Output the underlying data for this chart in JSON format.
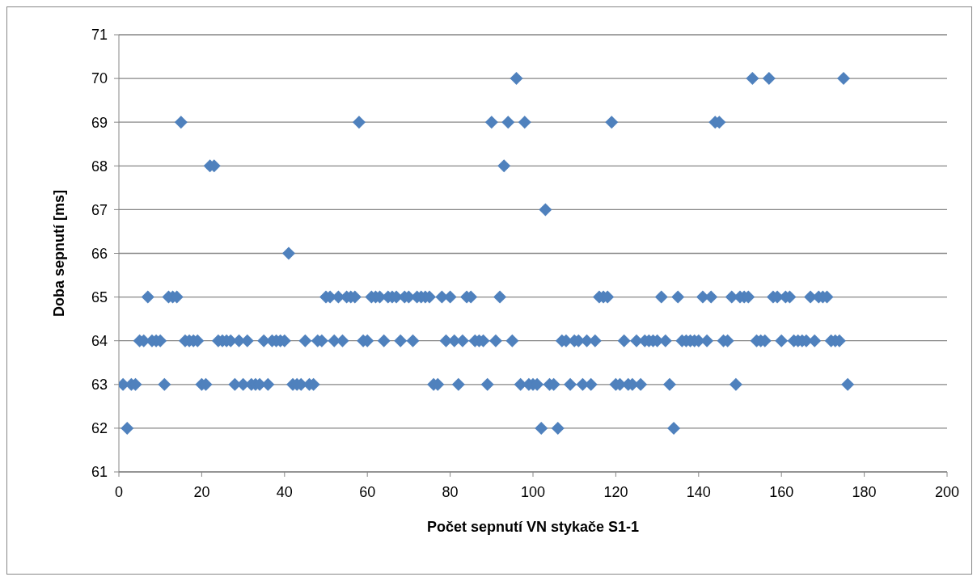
{
  "chart_data": {
    "type": "scatter",
    "xlabel": "Počet sepnutí VN stykače S1-1",
    "ylabel": "Doba sepnutí [ms]",
    "x": [
      1,
      2,
      3,
      4,
      5,
      6,
      7,
      8,
      9,
      10,
      11,
      12,
      13,
      14,
      15,
      16,
      17,
      18,
      19,
      20,
      21,
      22,
      23,
      24,
      25,
      26,
      27,
      28,
      29,
      30,
      31,
      32,
      33,
      34,
      35,
      36,
      37,
      38,
      39,
      40,
      41,
      42,
      43,
      44,
      45,
      46,
      47,
      48,
      49,
      50,
      51,
      52,
      53,
      54,
      55,
      56,
      57,
      58,
      59,
      60,
      61,
      62,
      63,
      64,
      65,
      66,
      67,
      68,
      69,
      70,
      71,
      72,
      73,
      74,
      75,
      76,
      77,
      78,
      79,
      80,
      81,
      82,
      83,
      84,
      85,
      86,
      87,
      88,
      89,
      90,
      91,
      92,
      93,
      94,
      95,
      96,
      97,
      98,
      99,
      100,
      101,
      102,
      103,
      104,
      105,
      106,
      107,
      108,
      109,
      110,
      111,
      112,
      113,
      114,
      115,
      116,
      117,
      118,
      119,
      120,
      121,
      122,
      123,
      124,
      125,
      126,
      127,
      128,
      129,
      130,
      131,
      132,
      133,
      134,
      135,
      136,
      137,
      138,
      139,
      140,
      141,
      142,
      143,
      144,
      145,
      146,
      147,
      148,
      149,
      150,
      151,
      152,
      153,
      154,
      155,
      156,
      157,
      158,
      159,
      160,
      161,
      162,
      163,
      164,
      165,
      166,
      167,
      168,
      169,
      170,
      171,
      172,
      173,
      174,
      175,
      176
    ],
    "series": [
      {
        "color": "#4f81bd",
        "values": [
          63,
          62,
          63,
          63,
          64,
          64,
          65,
          64,
          64,
          64,
          63,
          65,
          65,
          65,
          69,
          64,
          64,
          64,
          64,
          63,
          63,
          68,
          68,
          64,
          64,
          64,
          64,
          63,
          64,
          63,
          64,
          63,
          63,
          63,
          64,
          63,
          64,
          64,
          64,
          64,
          66,
          63,
          63,
          63,
          64,
          63,
          63,
          64,
          64,
          65,
          65,
          64,
          65,
          64,
          65,
          65,
          65,
          69,
          64,
          64,
          65,
          65,
          65,
          64,
          65,
          65,
          65,
          64,
          65,
          65,
          64,
          65,
          65,
          65,
          65,
          63,
          63,
          65,
          64,
          65,
          64,
          63,
          64,
          65,
          65,
          64,
          64,
          64,
          63,
          69,
          64,
          65,
          68,
          69,
          64,
          70,
          63,
          69,
          63,
          63,
          63,
          62,
          67,
          63,
          63,
          62,
          64,
          64,
          63,
          64,
          64,
          63,
          64,
          63,
          64,
          65,
          65,
          65,
          69,
          63,
          63,
          64,
          63,
          63,
          64,
          63,
          64,
          64,
          64,
          64,
          65,
          64,
          63,
          62,
          65,
          64,
          64,
          64,
          64,
          64,
          65,
          64,
          65,
          69,
          69,
          64,
          64,
          65,
          63,
          65,
          65,
          65,
          70,
          64,
          64,
          64,
          70,
          65,
          65,
          64,
          65,
          65,
          64,
          64,
          64,
          64,
          65,
          64,
          65,
          65,
          65,
          64,
          64,
          64,
          70,
          63
        ]
      }
    ],
    "xlim": [
      0,
      200
    ],
    "xticks": [
      0,
      20,
      40,
      60,
      80,
      100,
      120,
      140,
      160,
      180,
      200
    ],
    "ylim": [
      61,
      71
    ],
    "yticks": [
      61,
      62,
      63,
      64,
      65,
      66,
      67,
      68,
      69,
      70,
      71
    ],
    "grid": "y",
    "legend": false,
    "marker": "diamond"
  }
}
